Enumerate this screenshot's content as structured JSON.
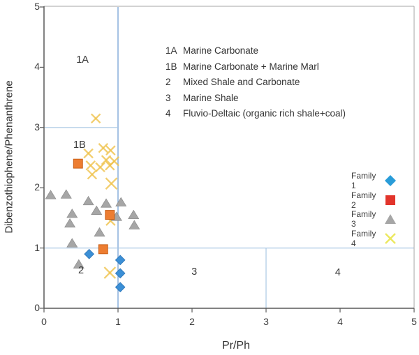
{
  "chart_data": {
    "type": "scatter",
    "title": "",
    "xlabel": "Pr/Ph",
    "ylabel": "Dibenzothiophene/Phenanthrene",
    "xlim": [
      0,
      5
    ],
    "ylim": [
      0,
      5
    ],
    "x_ticks": [
      0,
      1,
      2,
      3,
      4,
      5
    ],
    "y_ticks": [
      0,
      1,
      2,
      3,
      4,
      5
    ],
    "grid": false,
    "legend_position": "right-inside",
    "series": [
      {
        "name": "Family 1",
        "marker": "diamond",
        "color": "#3b8fd6",
        "edge": "#2e75b6",
        "legend_color": "#299cd8",
        "points": [
          [
            0.61,
            0.9
          ],
          [
            1.03,
            0.8
          ],
          [
            1.03,
            0.58
          ],
          [
            1.03,
            0.35
          ]
        ]
      },
      {
        "name": "Family 2",
        "marker": "square",
        "color": "#ed7d31",
        "edge": "#c55a11",
        "legend_color": "#e2342b",
        "points": [
          [
            0.46,
            2.4
          ],
          [
            0.89,
            1.55
          ],
          [
            0.8,
            0.98
          ]
        ]
      },
      {
        "name": "Family 3",
        "marker": "triangle",
        "color": "#a6a6a6",
        "edge": "#8c8c8c",
        "legend_color": "#a6a6a6",
        "points": [
          [
            0.09,
            1.88
          ],
          [
            0.3,
            1.89
          ],
          [
            0.6,
            1.78
          ],
          [
            0.84,
            1.74
          ],
          [
            1.04,
            1.76
          ],
          [
            0.71,
            1.62
          ],
          [
            0.38,
            1.57
          ],
          [
            0.98,
            1.52
          ],
          [
            1.21,
            1.55
          ],
          [
            1.22,
            1.38
          ],
          [
            0.35,
            1.41
          ],
          [
            0.75,
            1.26
          ],
          [
            0.38,
            1.08
          ],
          [
            0.47,
            0.73
          ]
        ]
      },
      {
        "name": "Family 4",
        "marker": "cross",
        "color": "#f0c24b",
        "edge": "#f0c24b",
        "legend_color": "#ece85e",
        "points": [
          [
            0.7,
            3.15
          ],
          [
            0.8,
            2.66
          ],
          [
            0.9,
            2.62
          ],
          [
            0.6,
            2.57
          ],
          [
            0.84,
            2.46
          ],
          [
            0.95,
            2.44
          ],
          [
            0.63,
            2.37
          ],
          [
            0.89,
            2.37
          ],
          [
            0.76,
            2.34
          ],
          [
            0.65,
            2.22
          ],
          [
            0.91,
            2.07,
            1.25
          ],
          [
            0.9,
            1.45
          ],
          [
            0.89,
            0.59,
            1.25
          ]
        ]
      }
    ],
    "dividers": [
      {
        "orient": "v",
        "x": 1,
        "y1": 0,
        "y2": 5,
        "weight": "strong"
      },
      {
        "orient": "h",
        "y": 3,
        "x1": 0,
        "x2": 1,
        "weight": "light"
      },
      {
        "orient": "h",
        "y": 1,
        "x1": 0,
        "x2": 5,
        "weight": "light"
      },
      {
        "orient": "v",
        "x": 3,
        "y1": 0,
        "y2": 1,
        "weight": "light"
      }
    ],
    "divider_colors": {
      "strong": "#7fa8d8",
      "light": "#a9c7e4"
    },
    "frame_color": "#a6a6a6",
    "axis_color": "#595959",
    "zone_labels": [
      {
        "text": "1A",
        "x": 0.52,
        "y": 4.12
      },
      {
        "text": "1B",
        "x": 0.48,
        "y": 2.71
      },
      {
        "text": "2",
        "x": 0.5,
        "y": 0.62
      },
      {
        "text": "3",
        "x": 2.03,
        "y": 0.6
      },
      {
        "text": "4",
        "x": 3.97,
        "y": 0.59
      }
    ],
    "annotations": [
      {
        "key": "1A",
        "text": "Marine Carbonate"
      },
      {
        "key": "1B",
        "text": "Marine Carbonate + Marine Marl"
      },
      {
        "key": "2",
        "text": "Mixed Shale and Carbonate"
      },
      {
        "key": "3",
        "text": "Marine Shale"
      },
      {
        "key": "4",
        "text": "Fluvio-Deltaic (organic rich shale+coal)"
      }
    ],
    "legend": [
      {
        "label": "Family 1",
        "marker": "diamond"
      },
      {
        "label": "Family 2",
        "marker": "square"
      },
      {
        "label": "Family 3",
        "marker": "triangle"
      },
      {
        "label": "Family 4",
        "marker": "cross"
      }
    ]
  }
}
